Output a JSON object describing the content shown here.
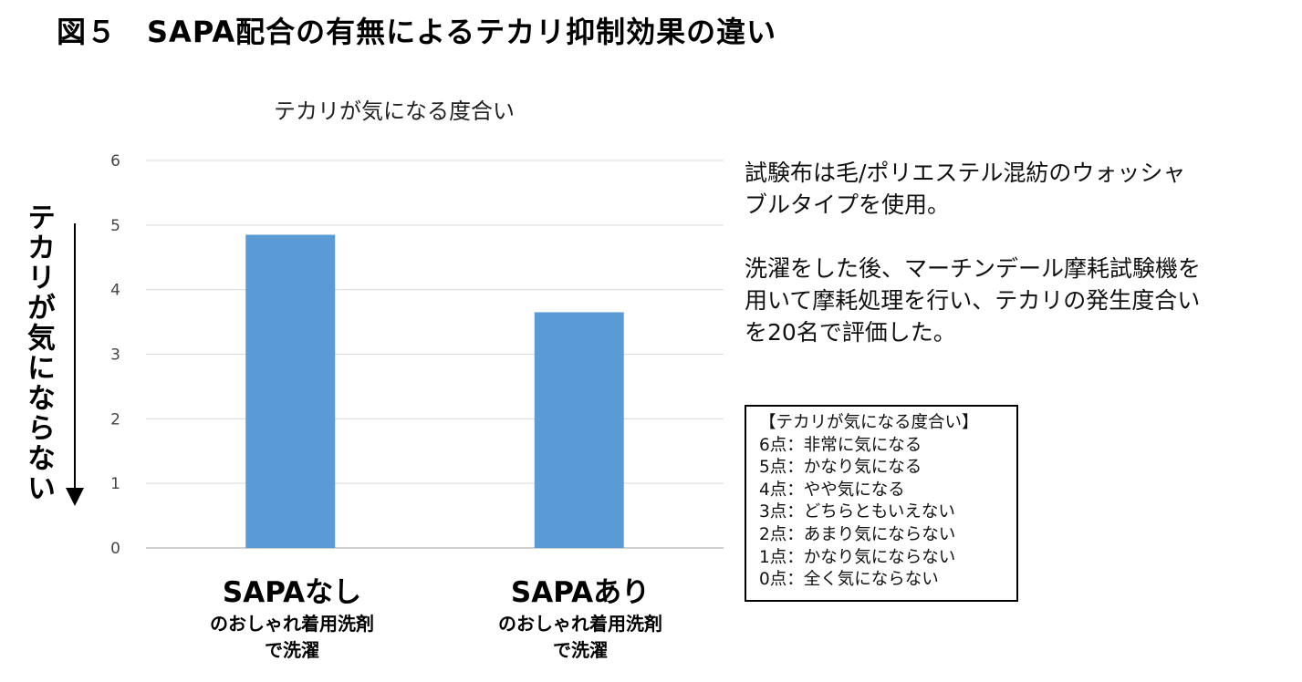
{
  "figure": {
    "title": "図５　SAPA配合の有無によるテカリ抑制効果の違い"
  },
  "chart_data": {
    "type": "bar",
    "title": "テカリが気になる度合い",
    "ylabel": "テカリが気にならない",
    "ylim": [
      0,
      6
    ],
    "yticks": [
      0,
      1,
      2,
      3,
      4,
      5,
      6
    ],
    "grid": true,
    "bar_color": "#5B9BD5",
    "categories": [
      {
        "main": "SAPAなし",
        "sub1": "のおしゃれ着用洗剤",
        "sub2": "で洗濯"
      },
      {
        "main": "SAPAあり",
        "sub1": "のおしゃれ着用洗剤",
        "sub2": "で洗濯"
      }
    ],
    "values": [
      4.85,
      3.65
    ]
  },
  "notes": {
    "p1_line1": "試験布は毛/ポリエステル混紡のウォッシャ",
    "p1_line2": "ブルタイプを使用。",
    "p2_line1": "洗濯をした後、マーチンデール摩耗試験機を",
    "p2_line2": "用いて摩耗処理を行い、テカリの発生度合い",
    "p2_line3": "を20名で評価した。"
  },
  "scale_legend": {
    "title": "【テカリが気になる度合い】",
    "items": [
      "6点：非常に気になる",
      "5点：かなり気になる",
      "4点：やや気になる",
      "3点：どちらともいえない",
      "2点：あまり気にならない",
      "1点：かなり気にならない",
      "0点：全く気にならない"
    ]
  }
}
